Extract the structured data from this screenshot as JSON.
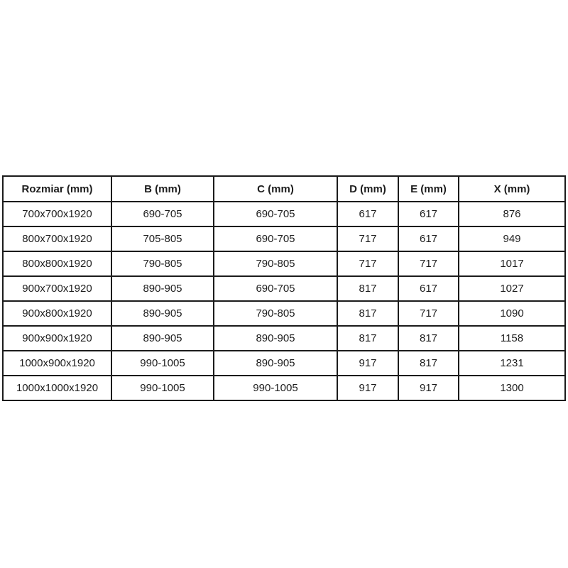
{
  "page": {
    "background_color": "#ffffff",
    "border_color": "#1b1b1b",
    "text_color": "#1d1d1d"
  },
  "table": {
    "headers": [
      "Rozmiar (mm)",
      "B (mm)",
      "C (mm)",
      "D (mm)",
      "E (mm)",
      "X (mm)"
    ],
    "rows": [
      {
        "cells": [
          "700x700x1920",
          "690-705",
          "690-705",
          "617",
          "617",
          "876"
        ]
      },
      {
        "cells": [
          "800x700x1920",
          "705-805",
          "690-705",
          "717",
          "617",
          "949"
        ]
      },
      {
        "cells": [
          "800x800x1920",
          "790-805",
          "790-805",
          "717",
          "717",
          "1017"
        ]
      },
      {
        "cells": [
          "900x700x1920",
          "890-905",
          "690-705",
          "817",
          "617",
          "1027"
        ]
      },
      {
        "cells": [
          "900x800x1920",
          "890-905",
          "790-805",
          "817",
          "717",
          "1090"
        ]
      },
      {
        "cells": [
          "900x900x1920",
          "890-905",
          "890-905",
          "817",
          "817",
          "1158"
        ]
      },
      {
        "cells": [
          "1000x900x1920",
          "990-1005",
          "890-905",
          "917",
          "817",
          "1231"
        ]
      },
      {
        "cells": [
          "1000x1000x1920",
          "990-1005",
          "990-1005",
          "917",
          "917",
          "1300"
        ]
      }
    ]
  }
}
